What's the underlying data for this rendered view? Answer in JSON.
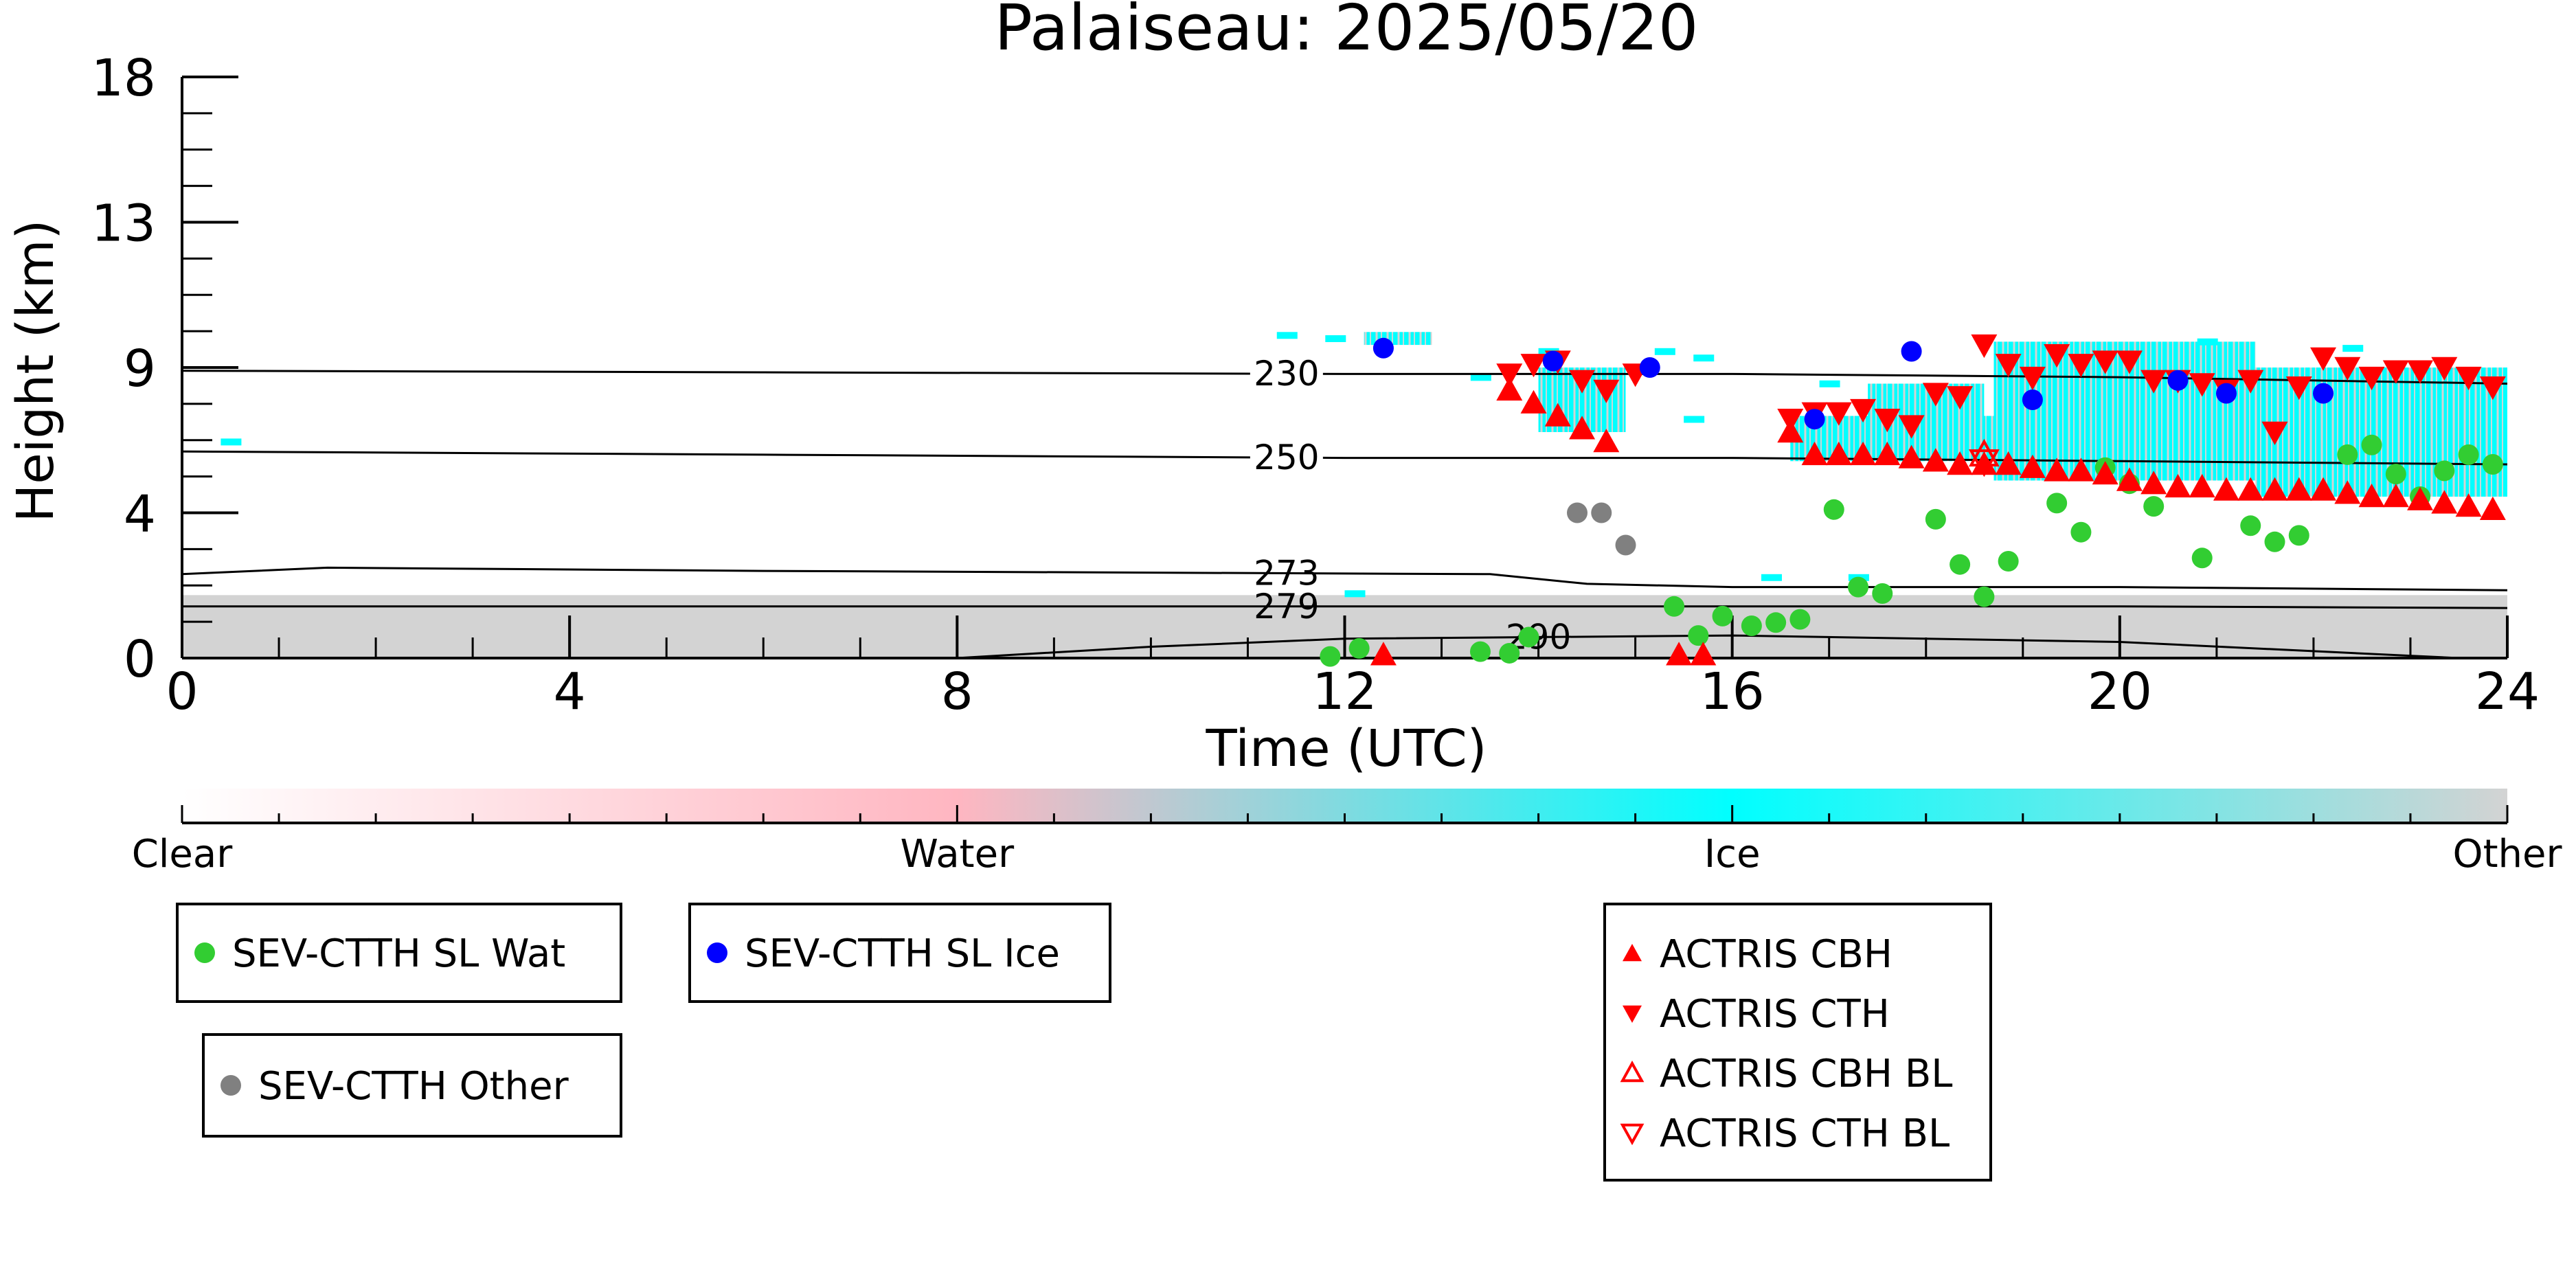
{
  "chart_data": {
    "type": "scatter",
    "title": "Palaiseau: 2025/05/20",
    "xlabel": "Time (UTC)",
    "ylabel": "Height (km)",
    "xlim": [
      0,
      24
    ],
    "ylim": [
      0,
      18
    ],
    "x_ticks": [
      "0",
      "4",
      "8",
      "12",
      "16",
      "20",
      "24"
    ],
    "y_ticks": [
      "0",
      "4",
      "9",
      "13",
      "18"
    ],
    "grid": false,
    "temperature_isolines": [
      {
        "label": "230",
        "points": [
          [
            0,
            8.9
          ],
          [
            6,
            8.85
          ],
          [
            12,
            8.8
          ],
          [
            16,
            8.8
          ],
          [
            20,
            8.7
          ],
          [
            24,
            8.5
          ]
        ]
      },
      {
        "label": "250",
        "points": [
          [
            0,
            6.4
          ],
          [
            6,
            6.3
          ],
          [
            12,
            6.2
          ],
          [
            16,
            6.2
          ],
          [
            20,
            6.1
          ],
          [
            24,
            6.0
          ]
        ]
      },
      {
        "label": "273",
        "points": [
          [
            0,
            2.6
          ],
          [
            1.5,
            2.8
          ],
          [
            6,
            2.7
          ],
          [
            13.5,
            2.6
          ],
          [
            14.5,
            2.3
          ],
          [
            16,
            2.2
          ],
          [
            20,
            2.2
          ],
          [
            24,
            2.1
          ]
        ]
      },
      {
        "label": "279",
        "points": [
          [
            0,
            1.6
          ],
          [
            6,
            1.6
          ],
          [
            12,
            1.6
          ],
          [
            16,
            1.6
          ],
          [
            20,
            1.6
          ],
          [
            24,
            1.55
          ]
        ]
      },
      {
        "label": "290",
        "points": [
          [
            8,
            0
          ],
          [
            10,
            0.35
          ],
          [
            12,
            0.6
          ],
          [
            16,
            0.7
          ],
          [
            20,
            0.5
          ],
          [
            23.5,
            0
          ]
        ]
      }
    ],
    "cloud_mask_colorbar": {
      "labels": [
        "Clear",
        "Water",
        "Ice",
        "Other"
      ],
      "colors": [
        "#ffffff",
        "#ffb6c1",
        "#00ffff",
        "#d3d3d3"
      ]
    },
    "background_colors": {
      "other_layer": "#d3d3d3",
      "ice_cloud": "#00ffff",
      "ice_cloud_hatch": "#d3d3d3"
    },
    "series": [
      {
        "name": "SEV-CTTH SL Wat",
        "marker": "circle",
        "color": "#32cd32",
        "x": [
          11.85,
          12.15,
          13.4,
          13.7,
          13.9,
          15.4,
          15.65,
          15.9,
          16.2,
          16.45,
          16.7,
          17.05,
          17.3,
          17.55,
          18.1,
          18.35,
          18.6,
          18.85,
          19.35,
          19.6,
          19.85,
          20.1,
          20.35,
          20.85,
          21.35,
          21.6,
          21.85,
          22.35,
          22.6,
          22.85,
          23.1,
          23.35,
          23.6,
          23.85
        ],
        "y": [
          0.05,
          0.3,
          0.2,
          0.15,
          0.65,
          1.6,
          0.7,
          1.3,
          1.0,
          1.1,
          1.2,
          4.6,
          2.2,
          2.0,
          4.3,
          2.9,
          1.9,
          3.0,
          4.8,
          3.9,
          5.9,
          5.4,
          4.7,
          3.1,
          4.1,
          3.6,
          3.8,
          6.3,
          6.6,
          5.7,
          5.0,
          5.8,
          6.3,
          6.0
        ]
      },
      {
        "name": "SEV-CTTH SL Ice",
        "marker": "circle",
        "color": "#0000ff",
        "x": [
          12.4,
          14.15,
          15.15,
          16.85,
          17.85,
          19.1,
          20.6,
          21.1,
          22.1
        ],
        "y": [
          9.6,
          9.2,
          9.0,
          7.4,
          9.5,
          8.0,
          8.6,
          8.2,
          8.2
        ]
      },
      {
        "name": "SEV-CTTH Other",
        "marker": "circle",
        "color": "#808080",
        "x": [
          14.4,
          14.65,
          14.9
        ],
        "y": [
          4.5,
          4.5,
          3.5
        ]
      },
      {
        "name": "ACTRIS CBH",
        "marker": "triangle-up",
        "color": "#ff0000",
        "x": [
          12.4,
          13.7,
          13.95,
          14.2,
          14.45,
          14.7,
          15.45,
          15.7,
          16.6,
          16.85,
          17.1,
          17.35,
          17.6,
          17.85,
          18.1,
          18.35,
          18.6,
          18.85,
          19.1,
          19.35,
          19.6,
          19.85,
          20.1,
          20.35,
          20.6,
          20.85,
          21.1,
          21.35,
          21.6,
          21.85,
          22.1,
          22.35,
          22.6,
          22.85,
          23.1,
          23.35,
          23.6,
          23.85
        ],
        "y": [
          0.1,
          8.3,
          7.9,
          7.5,
          7.1,
          6.7,
          0.1,
          0.1,
          7.0,
          6.3,
          6.3,
          6.3,
          6.3,
          6.2,
          6.1,
          6.0,
          6.0,
          6.0,
          5.9,
          5.8,
          5.8,
          5.7,
          5.5,
          5.4,
          5.3,
          5.3,
          5.2,
          5.2,
          5.2,
          5.2,
          5.2,
          5.1,
          5.0,
          5.0,
          4.9,
          4.8,
          4.7,
          4.6
        ]
      },
      {
        "name": "ACTRIS CTH",
        "marker": "triangle-down",
        "color": "#ff0000",
        "x": [
          13.7,
          13.95,
          14.2,
          14.45,
          14.7,
          15.0,
          16.6,
          16.85,
          17.1,
          17.35,
          17.6,
          17.85,
          18.1,
          18.35,
          18.6,
          18.85,
          19.1,
          19.35,
          19.6,
          19.85,
          20.1,
          20.35,
          20.6,
          20.85,
          21.1,
          21.35,
          21.6,
          21.85,
          22.1,
          22.35,
          22.6,
          22.85,
          23.1,
          23.35,
          23.6,
          23.85
        ],
        "y": [
          8.8,
          9.1,
          9.2,
          8.6,
          8.3,
          8.8,
          7.4,
          7.6,
          7.6,
          7.7,
          7.4,
          7.2,
          8.2,
          8.1,
          9.7,
          9.1,
          8.7,
          9.4,
          9.1,
          9.2,
          9.2,
          8.6,
          8.6,
          8.5,
          8.3,
          8.6,
          7.0,
          8.4,
          9.3,
          9.0,
          8.7,
          8.9,
          8.9,
          9.0,
          8.7,
          8.4
        ]
      },
      {
        "name": "ACTRIS CBH BL",
        "marker": "triangle-up-open",
        "color": "#ff0000",
        "x": [
          18.6
        ],
        "y": [
          6.3
        ]
      },
      {
        "name": "ACTRIS CTH BL",
        "marker": "triangle-down-open",
        "color": "#ff0000",
        "x": [
          18.6
        ],
        "y": [
          6.1
        ]
      }
    ]
  }
}
